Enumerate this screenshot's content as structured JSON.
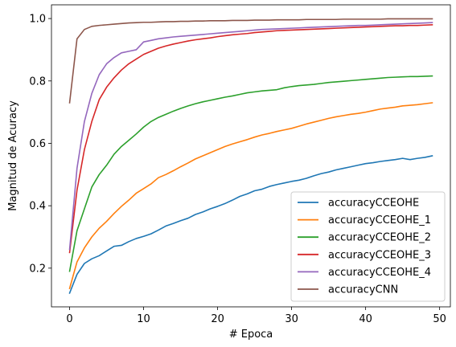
{
  "chart_data": {
    "type": "line",
    "title": "",
    "xlabel": "# Epoca",
    "ylabel": "Magnitud de Acuracy",
    "xlim": [
      -2.45,
      51.45
    ],
    "ylim": [
      0.076,
      1.044
    ],
    "xticks": [
      0,
      10,
      20,
      30,
      40,
      50
    ],
    "yticks": [
      0.2,
      0.4,
      0.6,
      0.8,
      1.0
    ],
    "xtick_labels": [
      "0",
      "10",
      "20",
      "30",
      "40",
      "50"
    ],
    "ytick_labels": [
      "0.2",
      "0.4",
      "0.6",
      "0.8",
      "1.0"
    ],
    "grid": false,
    "legend_position": "lower-right",
    "x": [
      0,
      1,
      2,
      3,
      4,
      5,
      6,
      7,
      8,
      9,
      10,
      11,
      12,
      13,
      14,
      15,
      16,
      17,
      18,
      19,
      20,
      21,
      22,
      23,
      24,
      25,
      26,
      27,
      28,
      29,
      30,
      31,
      32,
      33,
      34,
      35,
      36,
      37,
      38,
      39,
      40,
      41,
      42,
      43,
      44,
      45,
      46,
      47,
      48,
      49
    ],
    "series": [
      {
        "name": "accuracyCCEOHE",
        "color": "#1f77b4",
        "values": [
          0.12,
          0.18,
          0.215,
          0.23,
          0.24,
          0.255,
          0.27,
          0.273,
          0.285,
          0.295,
          0.302,
          0.31,
          0.322,
          0.335,
          0.343,
          0.352,
          0.36,
          0.372,
          0.38,
          0.39,
          0.398,
          0.407,
          0.418,
          0.43,
          0.438,
          0.448,
          0.453,
          0.462,
          0.468,
          0.473,
          0.478,
          0.482,
          0.488,
          0.496,
          0.503,
          0.508,
          0.515,
          0.52,
          0.525,
          0.53,
          0.535,
          0.538,
          0.542,
          0.545,
          0.548,
          0.552,
          0.548,
          0.552,
          0.555,
          0.56
        ]
      },
      {
        "name": "accuracyCCEOHE_1",
        "color": "#ff7f0e",
        "values": [
          0.135,
          0.22,
          0.265,
          0.3,
          0.328,
          0.35,
          0.375,
          0.398,
          0.418,
          0.44,
          0.455,
          0.47,
          0.49,
          0.5,
          0.512,
          0.525,
          0.537,
          0.55,
          0.56,
          0.57,
          0.58,
          0.59,
          0.598,
          0.605,
          0.612,
          0.62,
          0.627,
          0.632,
          0.638,
          0.643,
          0.648,
          0.655,
          0.662,
          0.668,
          0.674,
          0.68,
          0.685,
          0.689,
          0.693,
          0.696,
          0.7,
          0.705,
          0.71,
          0.713,
          0.716,
          0.72,
          0.722,
          0.724,
          0.727,
          0.73
        ]
      },
      {
        "name": "accuracyCCEOHE_2",
        "color": "#2ca02c",
        "values": [
          0.19,
          0.32,
          0.39,
          0.46,
          0.5,
          0.53,
          0.565,
          0.59,
          0.61,
          0.63,
          0.652,
          0.67,
          0.683,
          0.693,
          0.703,
          0.712,
          0.72,
          0.727,
          0.733,
          0.738,
          0.743,
          0.748,
          0.752,
          0.757,
          0.762,
          0.765,
          0.768,
          0.77,
          0.772,
          0.778,
          0.782,
          0.785,
          0.787,
          0.789,
          0.792,
          0.795,
          0.797,
          0.799,
          0.801,
          0.803,
          0.805,
          0.807,
          0.809,
          0.811,
          0.812,
          0.813,
          0.814,
          0.814,
          0.815,
          0.816
        ]
      },
      {
        "name": "accuracyCCEOHE_3",
        "color": "#d62728",
        "values": [
          0.25,
          0.45,
          0.58,
          0.67,
          0.74,
          0.78,
          0.81,
          0.835,
          0.855,
          0.87,
          0.885,
          0.895,
          0.905,
          0.912,
          0.918,
          0.923,
          0.928,
          0.932,
          0.935,
          0.938,
          0.942,
          0.945,
          0.948,
          0.95,
          0.952,
          0.955,
          0.957,
          0.959,
          0.961,
          0.962,
          0.963,
          0.964,
          0.965,
          0.966,
          0.967,
          0.968,
          0.969,
          0.97,
          0.971,
          0.972,
          0.973,
          0.974,
          0.975,
          0.976,
          0.977,
          0.977,
          0.978,
          0.978,
          0.979,
          0.98
        ]
      },
      {
        "name": "accuracyCCEOHE_4",
        "color": "#9467bd",
        "values": [
          0.26,
          0.52,
          0.67,
          0.76,
          0.82,
          0.855,
          0.875,
          0.89,
          0.895,
          0.9,
          0.925,
          0.93,
          0.935,
          0.938,
          0.941,
          0.943,
          0.945,
          0.947,
          0.949,
          0.951,
          0.953,
          0.955,
          0.957,
          0.959,
          0.961,
          0.963,
          0.965,
          0.966,
          0.967,
          0.968,
          0.969,
          0.97,
          0.971,
          0.972,
          0.973,
          0.974,
          0.975,
          0.976,
          0.977,
          0.978,
          0.978,
          0.979,
          0.98,
          0.981,
          0.982,
          0.983,
          0.984,
          0.985,
          0.986,
          0.987
        ]
      },
      {
        "name": "accuracyCNN",
        "color": "#8c564b",
        "values": [
          0.73,
          0.935,
          0.965,
          0.975,
          0.978,
          0.98,
          0.982,
          0.984,
          0.986,
          0.987,
          0.988,
          0.988,
          0.989,
          0.99,
          0.99,
          0.991,
          0.991,
          0.992,
          0.992,
          0.993,
          0.993,
          0.993,
          0.994,
          0.994,
          0.994,
          0.995,
          0.995,
          0.995,
          0.996,
          0.996,
          0.996,
          0.996,
          0.997,
          0.997,
          0.997,
          0.997,
          0.997,
          0.998,
          0.998,
          0.998,
          0.998,
          0.998,
          0.998,
          0.999,
          0.999,
          0.999,
          0.999,
          0.999,
          0.999,
          0.999
        ]
      }
    ]
  }
}
